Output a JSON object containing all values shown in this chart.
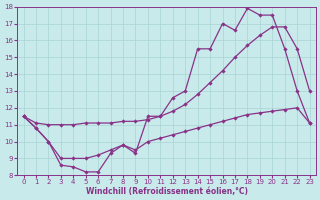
{
  "bg_color": "#c8eaea",
  "grid_color": "#aad4d4",
  "line_color": "#883388",
  "xlabel": "Windchill (Refroidissement éolien,°C)",
  "xlim": [
    -0.5,
    23.5
  ],
  "ylim": [
    8,
    18
  ],
  "xticks": [
    0,
    1,
    2,
    3,
    4,
    5,
    6,
    7,
    8,
    9,
    10,
    11,
    12,
    13,
    14,
    15,
    16,
    17,
    18,
    19,
    20,
    21,
    22,
    23
  ],
  "yticks": [
    8,
    9,
    10,
    11,
    12,
    13,
    14,
    15,
    16,
    17,
    18
  ],
  "line1_x": [
    0,
    1,
    2,
    3,
    4,
    5,
    6,
    7,
    8,
    9,
    10,
    11,
    12,
    13,
    14,
    15,
    16,
    17,
    18,
    19,
    20,
    21,
    22,
    23
  ],
  "line1_y": [
    11.5,
    10.8,
    10.0,
    8.6,
    8.5,
    8.2,
    8.2,
    9.3,
    9.8,
    9.3,
    11.5,
    11.5,
    12.6,
    13.0,
    15.5,
    15.5,
    17.0,
    16.6,
    17.9,
    17.5,
    17.5,
    15.5,
    13.0,
    11.1
  ],
  "line2_x": [
    0,
    1,
    2,
    3,
    4,
    5,
    6,
    7,
    8,
    9,
    10,
    11,
    12,
    13,
    14,
    15,
    16,
    17,
    18,
    19,
    20,
    21,
    22,
    23
  ],
  "line2_y": [
    11.5,
    11.1,
    11.0,
    11.0,
    11.0,
    11.1,
    11.1,
    11.1,
    11.2,
    11.2,
    11.3,
    11.5,
    11.8,
    12.2,
    12.8,
    13.5,
    14.2,
    15.0,
    15.7,
    16.3,
    16.8,
    16.8,
    15.5,
    13.0
  ],
  "line3_x": [
    0,
    1,
    2,
    3,
    4,
    5,
    6,
    7,
    8,
    9,
    10,
    11,
    12,
    13,
    14,
    15,
    16,
    17,
    18,
    19,
    20,
    21,
    22,
    23
  ],
  "line3_y": [
    11.5,
    10.8,
    10.0,
    9.0,
    9.0,
    9.0,
    9.2,
    9.5,
    9.8,
    9.5,
    10.0,
    10.2,
    10.4,
    10.6,
    10.8,
    11.0,
    11.2,
    11.4,
    11.6,
    11.7,
    11.8,
    11.9,
    12.0,
    11.1
  ]
}
